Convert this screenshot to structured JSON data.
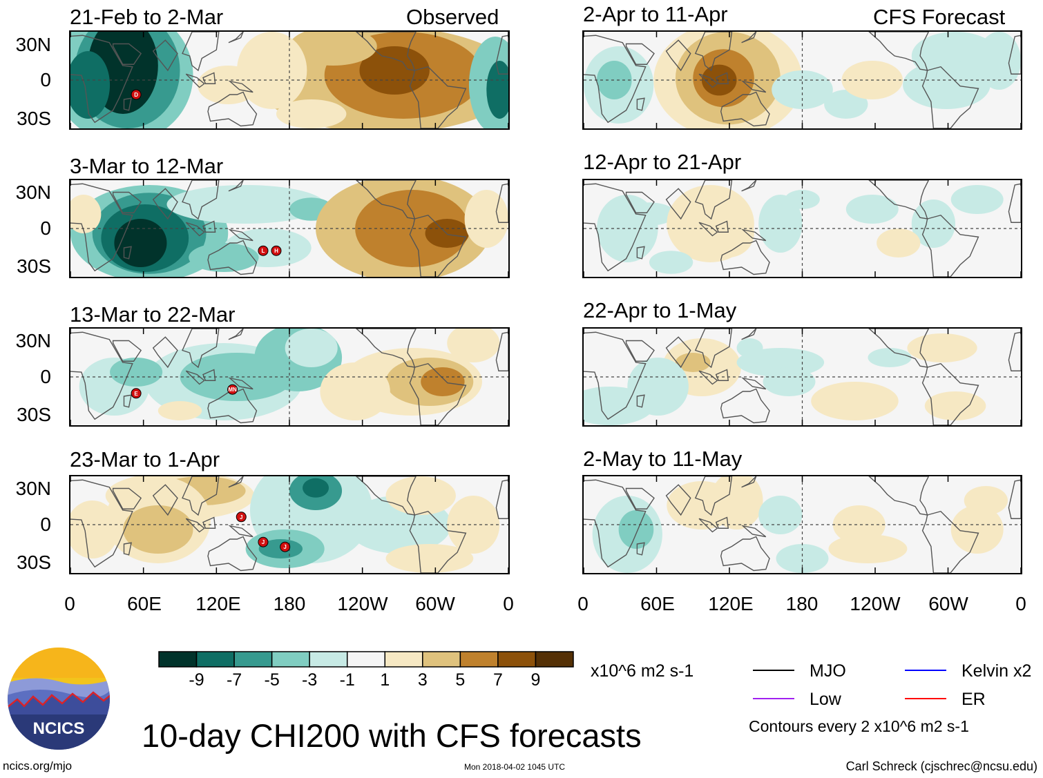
{
  "left_column_label": "Observed",
  "right_column_label": "CFS Forecast",
  "main_title": "10-day CHI200 with CFS forecasts",
  "site": "ncics.org/mjo",
  "timestamp": "Mon 2018-04-02 1045 UTC",
  "credit": "Carl Schreck (cjschrec@ncsu.edu)",
  "logo_text": "NCICS",
  "y_axis_labels": [
    "30N",
    "0",
    "30S"
  ],
  "x_axis_labels": [
    "0",
    "60E",
    "120E",
    "180",
    "120W",
    "60W",
    "0"
  ],
  "panels_observed": [
    {
      "title": "21-Feb to 2-Mar"
    },
    {
      "title": "3-Mar to 12-Mar"
    },
    {
      "title": "13-Mar to 22-Mar"
    },
    {
      "title": "23-Mar to 1-Apr"
    }
  ],
  "panels_forecast": [
    {
      "title": "2-Apr to 11-Apr"
    },
    {
      "title": "12-Apr to 21-Apr"
    },
    {
      "title": "22-Apr to 1-May"
    },
    {
      "title": "2-May to 11-May"
    }
  ],
  "colorbar": {
    "units": "x10^6 m2 s-1",
    "labels": [
      "-9",
      "-7",
      "-5",
      "-3",
      "-1",
      "1",
      "3",
      "5",
      "7",
      "9"
    ],
    "colors": [
      "#01332b",
      "#0f6e64",
      "#379a8f",
      "#80cdc1",
      "#c7eae5",
      "#f5f5f5",
      "#f6e8c3",
      "#dfc27d",
      "#bf812d",
      "#8c510a",
      "#543005"
    ]
  },
  "legend": {
    "mjo": {
      "label": "MJO",
      "color": "#000000"
    },
    "kelvin": {
      "label": "Kelvin x2",
      "color": "#0000ff"
    },
    "low": {
      "label": "Low",
      "color": "#a020f0"
    },
    "er": {
      "label": "ER",
      "color": "#ff0000"
    },
    "contour_note": "Contours every 2 x10^6 m2 s-1"
  },
  "storm_markers": [
    {
      "panel": 0,
      "labels": [
        "D"
      ]
    },
    {
      "panel": 1,
      "labels": [
        "L",
        "H"
      ]
    },
    {
      "panel": 2,
      "labels": [
        "E",
        "MN"
      ]
    },
    {
      "panel": 3,
      "labels": [
        "J",
        "J",
        "J"
      ]
    }
  ]
}
